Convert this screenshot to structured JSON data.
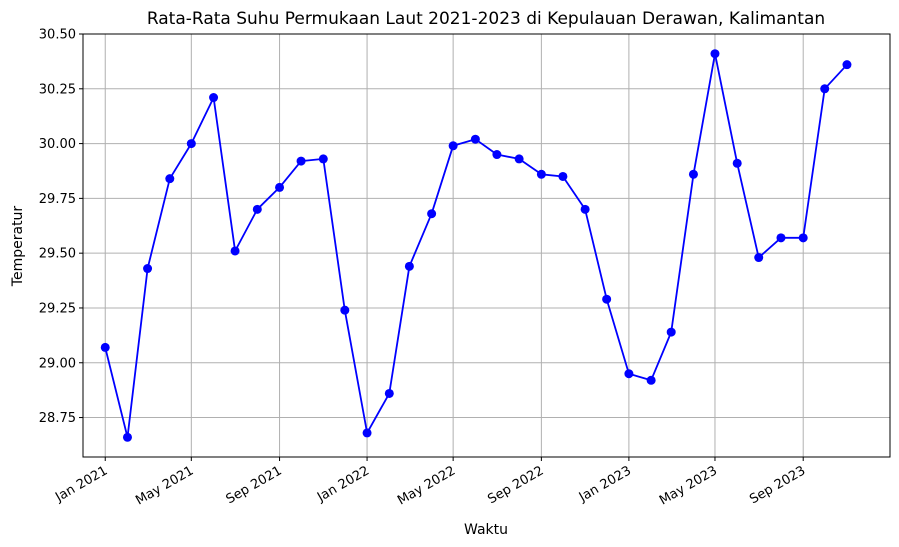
{
  "chart_data": {
    "type": "line",
    "title": "Rata-Rata Suhu Permukaan Laut 2021-2023 di Kepulauan Derawan, Kalimantan",
    "xlabel": "Waktu",
    "ylabel": "Temperatur",
    "grid": true,
    "ylim": [
      28.57,
      30.5
    ],
    "xlim": [
      "2020-12-01",
      "2023-12-31"
    ],
    "yticks": [
      "28.75",
      "29.00",
      "29.25",
      "29.50",
      "29.75",
      "30.00",
      "30.25",
      "30.50"
    ],
    "xticks": [
      {
        "date": "2021-01-01",
        "label": "Jan 2021"
      },
      {
        "date": "2021-05-01",
        "label": "May 2021"
      },
      {
        "date": "2021-09-01",
        "label": "Sep 2021"
      },
      {
        "date": "2022-01-01",
        "label": "Jan 2022"
      },
      {
        "date": "2022-05-01",
        "label": "May 2022"
      },
      {
        "date": "2022-09-01",
        "label": "Sep 2022"
      },
      {
        "date": "2023-01-01",
        "label": "Jan 2023"
      },
      {
        "date": "2023-05-01",
        "label": "May 2023"
      },
      {
        "date": "2023-09-01",
        "label": "Sep 2023"
      }
    ],
    "line_color": "#0000ff",
    "series": [
      {
        "x": [
          "2021-01-01",
          "2021-02-01",
          "2021-03-01",
          "2021-04-01",
          "2021-05-01",
          "2021-06-01",
          "2021-07-01",
          "2021-08-01",
          "2021-09-01",
          "2021-10-01",
          "2021-11-01",
          "2021-12-01",
          "2022-01-01",
          "2022-02-01",
          "2022-03-01",
          "2022-04-01",
          "2022-05-01",
          "2022-06-01",
          "2022-07-01",
          "2022-08-01",
          "2022-09-01",
          "2022-10-01",
          "2022-11-01",
          "2022-12-01",
          "2023-01-01",
          "2023-02-01",
          "2023-03-01",
          "2023-04-01",
          "2023-05-01",
          "2023-06-01",
          "2023-07-01",
          "2023-08-01",
          "2023-09-01",
          "2023-10-01",
          "2023-11-01"
        ],
        "values": [
          29.07,
          28.66,
          29.43,
          29.84,
          30.0,
          30.21,
          29.51,
          29.7,
          29.8,
          29.92,
          29.93,
          29.24,
          28.68,
          28.86,
          29.44,
          29.68,
          29.99,
          30.02,
          29.95,
          29.93,
          29.86,
          29.85,
          29.7,
          29.29,
          28.95,
          28.92,
          29.14,
          29.86,
          30.41,
          29.91,
          29.48,
          29.57,
          29.57,
          30.25,
          30.36
        ]
      }
    ]
  }
}
